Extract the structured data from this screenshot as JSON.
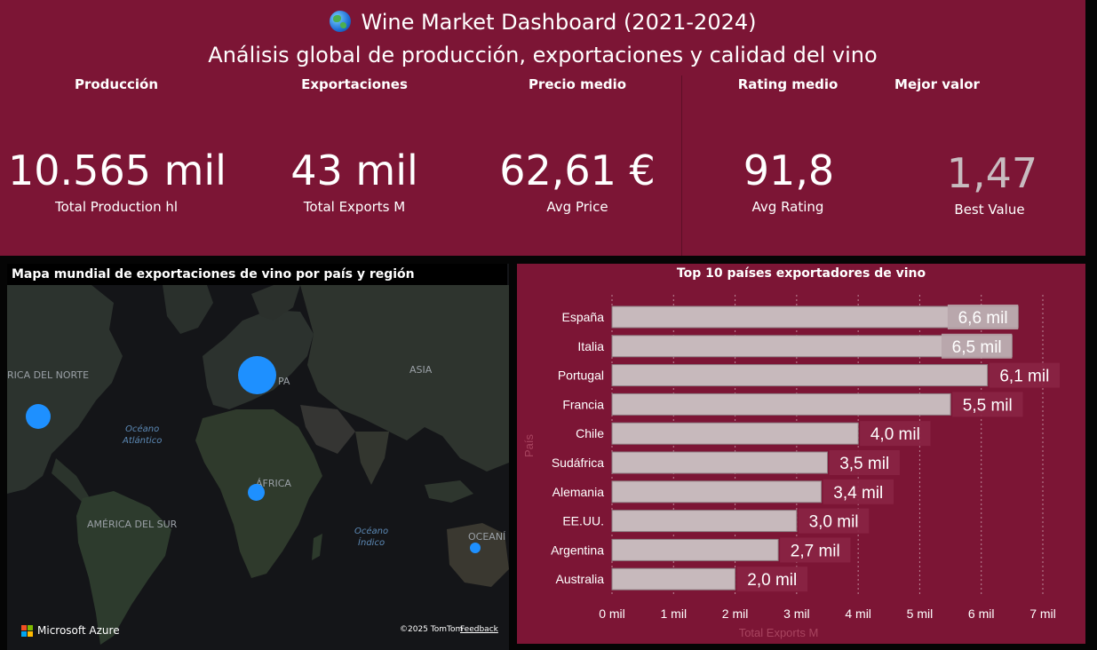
{
  "header": {
    "title": "Wine Market Dashboard (2021-2024)",
    "subtitle": "Análisis global de producción, exportaciones y calidad del vino",
    "globe_icon": "globe-icon"
  },
  "kpis": [
    {
      "label": "Producción",
      "value": "10.565 mil",
      "sub": "Total Production hl"
    },
    {
      "label": "Exportaciones",
      "value": "43 mil",
      "sub": "Total Exports M"
    },
    {
      "label": "Precio medio",
      "value": "62,61 €",
      "sub": "Avg Price"
    },
    {
      "label": "Rating medio",
      "value": "91,8",
      "sub": "Avg Rating"
    },
    {
      "label": "Mejor valor",
      "value": "1,47",
      "sub": "Best Value"
    }
  ],
  "map": {
    "title": "Mapa mundial de exportaciones de vino por país y región",
    "labels": {
      "north_america": "RICA DEL NORTE",
      "europe": "PA",
      "asia": "ASIA",
      "africa": "ÁFRICA",
      "south_america": "AMÉRICA DEL SUR",
      "oceania": "OCEANÍ",
      "atlantic": "Océano\nAtlántico",
      "indian": "Océano\nÍndico"
    },
    "provider": "Microsoft Azure",
    "copyright": "©2025 TomTom",
    "feedback": "Feedback"
  },
  "chart_data": {
    "type": "bar",
    "orientation": "horizontal",
    "title": "Top 10 países exportadores de vino",
    "xlabel": "Total Exports M",
    "ylabel": "País",
    "categories": [
      "España",
      "Italia",
      "Portugal",
      "Francia",
      "Chile",
      "Sudáfrica",
      "Alemania",
      "EE.UU.",
      "Argentina",
      "Australia"
    ],
    "values": [
      6.6,
      6.5,
      6.1,
      5.5,
      4.0,
      3.5,
      3.4,
      3.0,
      2.7,
      2.0
    ],
    "data_labels": [
      "6,6 mil",
      "6,5 mil",
      "6,1 mil",
      "5,5 mil",
      "4,0 mil",
      "3,5 mil",
      "3,4 mil",
      "3,0 mil",
      "2,7 mil",
      "2,0 mil"
    ],
    "xlim": [
      0,
      7
    ],
    "xticks": [
      "0 mil",
      "1 mil",
      "2 mil",
      "3 mil",
      "4 mil",
      "5 mil",
      "6 mil",
      "7 mil"
    ],
    "grid": true,
    "bar_color": "#c7b9bc",
    "background": "#7c1535"
  },
  "colors": {
    "accent": "#7c1535",
    "bubble": "#1e90ff"
  }
}
